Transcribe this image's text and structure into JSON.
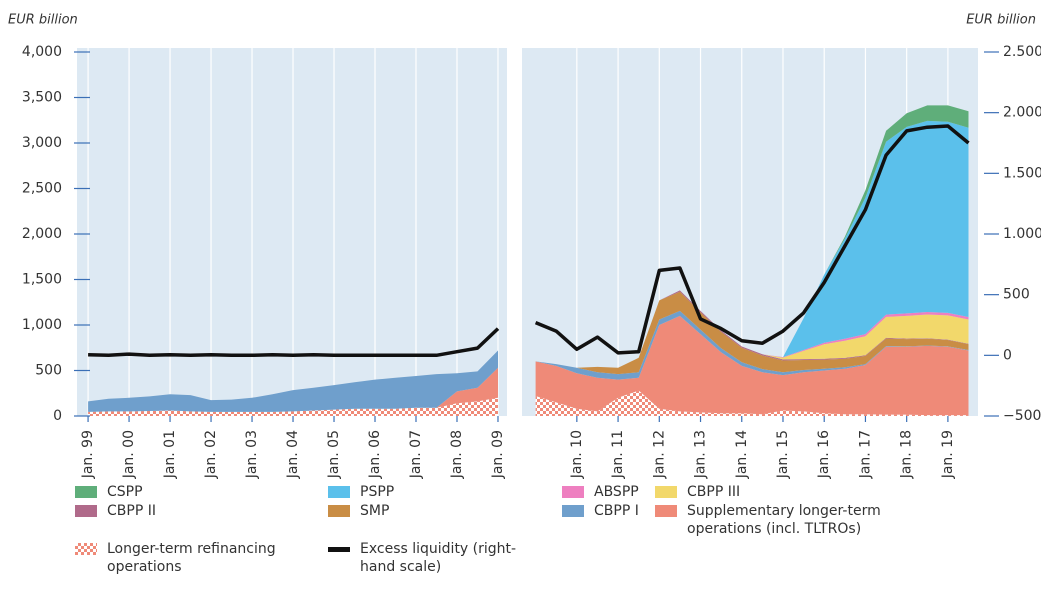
{
  "chart_data": {
    "type": "area",
    "y_label": "EUR billion",
    "y2_label": "EUR billion",
    "ylim": [
      0,
      4000
    ],
    "yticks": [
      0,
      500,
      {
        "value": 1000,
        "label": "1,000"
      },
      {
        "value": 1500,
        "label": "1,500"
      },
      {
        "value": 2000,
        "label": "2,000"
      },
      {
        "value": 2500,
        "label": "2,500"
      },
      {
        "value": 3000,
        "label": "3,000"
      },
      {
        "value": 3500,
        "label": "3,500"
      },
      {
        "value": 4000,
        "label": "4,000"
      }
    ],
    "y2lim": [
      -500,
      2500
    ],
    "y2ticks": [
      {
        "value": -500,
        "label": "−500"
      },
      0,
      500,
      {
        "value": 1000,
        "label": "1.000"
      },
      {
        "value": 1500,
        "label": "1.500"
      },
      {
        "value": 2000,
        "label": "2.000"
      },
      {
        "value": 2500,
        "label": "2.500"
      }
    ],
    "panels": [
      {
        "xlim": [
          1998.73,
          2009.22
        ],
        "xticks": [
          {
            "value": 1999,
            "label": "Jan. 99"
          },
          {
            "value": 2000,
            "label": "Jan. 00"
          },
          {
            "value": 2001,
            "label": "Jan. 01"
          },
          {
            "value": 2002,
            "label": "Jan. 02"
          },
          {
            "value": 2003,
            "label": "Jan. 03"
          },
          {
            "value": 2004,
            "label": "Jan. 04"
          },
          {
            "value": 2005,
            "label": "Jan. 05"
          },
          {
            "value": 2006,
            "label": "Jan. 06"
          },
          {
            "value": 2007,
            "label": "Jan. 07"
          },
          {
            "value": 2008,
            "label": "Jan. 08"
          },
          {
            "value": 2009,
            "label": "Jan. 09"
          }
        ],
        "x": [
          1999,
          1999.5,
          2000,
          2000.5,
          2001,
          2001.5,
          2002,
          2002.5,
          2003,
          2003.5,
          2004,
          2004.5,
          2005,
          2005.5,
          2006,
          2006.5,
          2007,
          2007.5,
          2008,
          2008.5,
          2009
        ]
      },
      {
        "xlim": [
          2008.67,
          2019.73
        ],
        "xticks": [
          {
            "value": 2010,
            "label": "Jan. 10"
          },
          {
            "value": 2011,
            "label": "Jan. 11"
          },
          {
            "value": 2012,
            "label": "Jan. 12"
          },
          {
            "value": 2013,
            "label": "Jan. 13"
          },
          {
            "value": 2014,
            "label": "Jan. 14"
          },
          {
            "value": 2015,
            "label": "Jan. 15"
          },
          {
            "value": 2016,
            "label": "Jan. 16"
          },
          {
            "value": 2017,
            "label": "Jan. 17"
          },
          {
            "value": 2018,
            "label": "Jan. 18"
          },
          {
            "value": 2019,
            "label": "Jan. 19"
          }
        ],
        "x": [
          2009,
          2009.5,
          2010,
          2010.5,
          2011,
          2011.5,
          2012,
          2012.5,
          2013,
          2013.5,
          2014,
          2014.5,
          2015,
          2015.5,
          2016,
          2016.5,
          2017,
          2017.5,
          2018,
          2018.5,
          2019,
          2019.5
        ]
      }
    ],
    "series": [
      {
        "name": "CSPP",
        "color": "#5fae7a",
        "values": [
          null,
          [
            0,
            0,
            0,
            0,
            0,
            0,
            0,
            0,
            0,
            0,
            0,
            0,
            0,
            0,
            0,
            20,
            80,
            120,
            150,
            170,
            180,
            180
          ]
        ]
      },
      {
        "name": "PSPP",
        "color": "#5bc0eb",
        "values": [
          null,
          [
            0,
            0,
            0,
            0,
            0,
            0,
            0,
            0,
            0,
            0,
            0,
            0,
            0,
            350,
            750,
            1100,
            1500,
            1900,
            2050,
            2100,
            2100,
            2080
          ]
        ]
      },
      {
        "name": "ABSPP",
        "color": "#ee7fc0",
        "values": [
          null,
          [
            0,
            0,
            0,
            0,
            0,
            0,
            0,
            0,
            0,
            0,
            0,
            0,
            5,
            10,
            15,
            20,
            23,
            25,
            27,
            28,
            28,
            28
          ]
        ]
      },
      {
        "name": "CBPP III",
        "color": "#f2d86b",
        "values": [
          null,
          [
            0,
            0,
            0,
            0,
            0,
            0,
            0,
            0,
            0,
            0,
            0,
            0,
            20,
            90,
            160,
            190,
            210,
            230,
            250,
            260,
            265,
            265
          ]
        ]
      },
      {
        "name": "CBPP II",
        "color": "#b06a8a",
        "values": [
          null,
          [
            0,
            0,
            0,
            0,
            0,
            0,
            0,
            15,
            15,
            15,
            14,
            13,
            12,
            10,
            9,
            8,
            7,
            6,
            5,
            5,
            5,
            5
          ]
        ]
      },
      {
        "name": "SMP",
        "color": "#c98d45",
        "values": [
          null,
          [
            0,
            0,
            0,
            60,
            70,
            160,
            210,
            210,
            190,
            180,
            160,
            150,
            130,
            110,
            100,
            95,
            90,
            85,
            80,
            75,
            70,
            65
          ]
        ]
      },
      {
        "name": "CBPP I",
        "color": "#6f9fcc",
        "values": [
          [
            115,
            140,
            150,
            160,
            180,
            180,
            130,
            135,
            155,
            195,
            235,
            250,
            270,
            290,
            320,
            340,
            350,
            370,
            200,
            180,
            190
          ],
          [
            0,
            20,
            60,
            60,
            60,
            60,
            60,
            55,
            50,
            45,
            40,
            35,
            30,
            25,
            20,
            15,
            10,
            8,
            5,
            5,
            5,
            5
          ]
        ]
      },
      {
        "name": "Supplementary longer-term operations (incl. TLTROs)",
        "color": "#ef8a78",
        "values": [
          [
            0,
            0,
            0,
            0,
            0,
            0,
            0,
            0,
            0,
            0,
            0,
            0,
            0,
            0,
            0,
            0,
            0,
            0,
            130,
            150,
            330
          ],
          [
            380,
            400,
            390,
            370,
            200,
            140,
            920,
            1050,
            860,
            670,
            520,
            460,
            390,
            430,
            470,
            500,
            540,
            745,
            745,
            760,
            750,
            710
          ]
        ]
      },
      {
        "name": "Longer-term refinancing operations",
        "color": "#ef8a78",
        "pattern": "checkered",
        "values": [
          [
            45,
            50,
            50,
            55,
            60,
            50,
            45,
            45,
            45,
            45,
            50,
            60,
            70,
            80,
            80,
            80,
            90,
            90,
            140,
            160,
            200
          ],
          [
            220,
            150,
            80,
            50,
            200,
            280,
            80,
            50,
            40,
            30,
            30,
            20,
            60,
            50,
            30,
            20,
            20,
            15,
            15,
            10,
            10,
            10
          ]
        ]
      },
      {
        "name": "Excess liquidity (right-hand scale)",
        "color": "#111111",
        "axis": "y2",
        "type": "line",
        "values": [
          [
            5,
            0,
            10,
            0,
            5,
            0,
            5,
            0,
            0,
            5,
            0,
            5,
            0,
            0,
            0,
            0,
            0,
            0,
            30,
            60,
            220
          ],
          [
            270,
            200,
            50,
            150,
            20,
            30,
            700,
            720,
            300,
            220,
            120,
            100,
            200,
            350,
            600,
            900,
            1200,
            1650,
            1850,
            1880,
            1890,
            1750
          ]
        ]
      }
    ]
  }
}
